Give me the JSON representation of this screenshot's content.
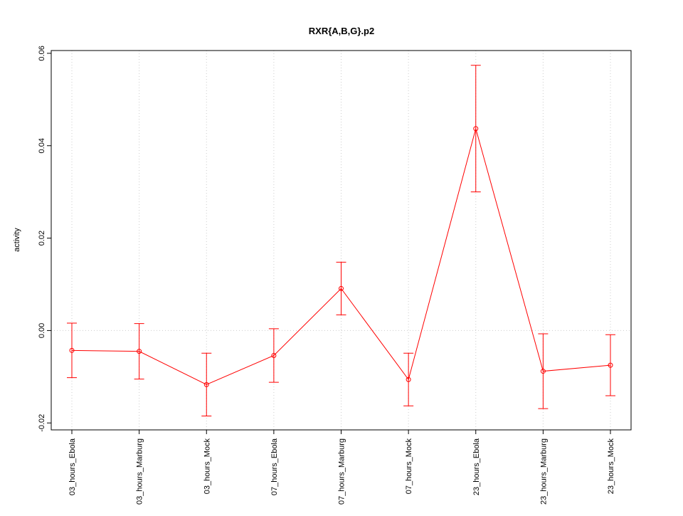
{
  "chart_data": {
    "type": "line",
    "title": "RXR{A,B,G}.p2",
    "y_label": "activity",
    "categories": [
      "03_hours_Ebola",
      "03_hours_Marburg",
      "03_hours_Mock",
      "07_hours_Ebola",
      "07_hours_Marburg",
      "07_hours_Mock",
      "23_hours_Ebola",
      "23_hours_Marburg",
      "23_hours_Mock"
    ],
    "values": [
      -0.0043,
      -0.0045,
      -0.0117,
      -0.0054,
      0.0091,
      -0.0106,
      0.0437,
      -0.0088,
      -0.0075
    ],
    "errors": [
      0.0059,
      0.006,
      0.0068,
      0.0058,
      0.0057,
      0.0057,
      0.0137,
      0.0081,
      0.0066
    ],
    "color": "#ff0000",
    "ylim": [
      -0.0215,
      0.0606
    ],
    "yticks": [
      -0.02,
      {
        "value": 0,
        "label": "0.00"
      },
      0.02,
      0.04,
      0.06
    ],
    "reference_line": 0,
    "grid": true
  }
}
